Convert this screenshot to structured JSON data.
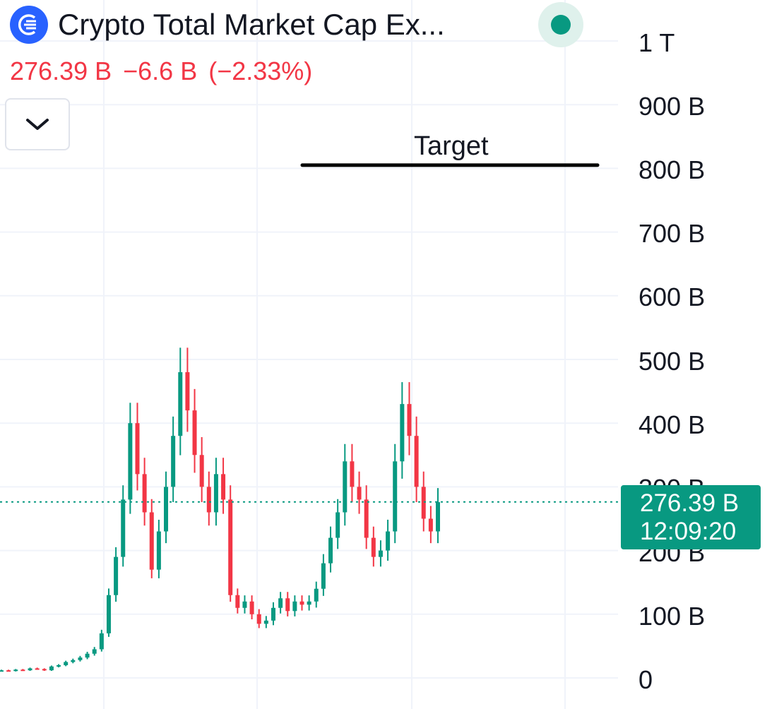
{
  "header": {
    "title": "Crypto Total Market Cap Ex...",
    "price": "276.39 B",
    "change": "−6.6 B",
    "change_pct": "(−2.33%)",
    "status_icon": "live-status-dot",
    "collapse_icon": "chevron-down-icon"
  },
  "colors": {
    "up": "#089981",
    "down": "#f23645",
    "brand": "#2962ff",
    "grid": "#f0f3fa"
  },
  "annotation": {
    "label": "Target",
    "value": 805000000000
  },
  "price_tag": {
    "value": "276.39 B",
    "time": "12:09:20"
  },
  "chart_data": {
    "type": "candlestick",
    "y_ticks": [
      "1 T",
      "900 B",
      "800 B",
      "700 B",
      "600 B",
      "500 B",
      "400 B",
      "300 B",
      "200 B",
      "100 B",
      "0"
    ],
    "y_tick_values": [
      1000,
      900,
      800,
      700,
      600,
      500,
      400,
      300,
      200,
      100,
      0
    ],
    "y_unit": "billions USD",
    "ylim": [
      0,
      1000
    ],
    "last_price": 276.39,
    "grid": true,
    "series": [
      {
        "name": "",
        "values": [
          12,
          11,
          13,
          12,
          15,
          14,
          12,
          18,
          20,
          25,
          28,
          32,
          38,
          45,
          70,
          130,
          190,
          280,
          400,
          320,
          260,
          170,
          230,
          300,
          380,
          480,
          420,
          350,
          300,
          260,
          320,
          280,
          130,
          110,
          120,
          100,
          85,
          90,
          110,
          125,
          105,
          120,
          115,
          120,
          140,
          180,
          220,
          260,
          340,
          300,
          280,
          220,
          190,
          200,
          230,
          340,
          430,
          380,
          300,
          250,
          230,
          276
        ]
      }
    ]
  }
}
